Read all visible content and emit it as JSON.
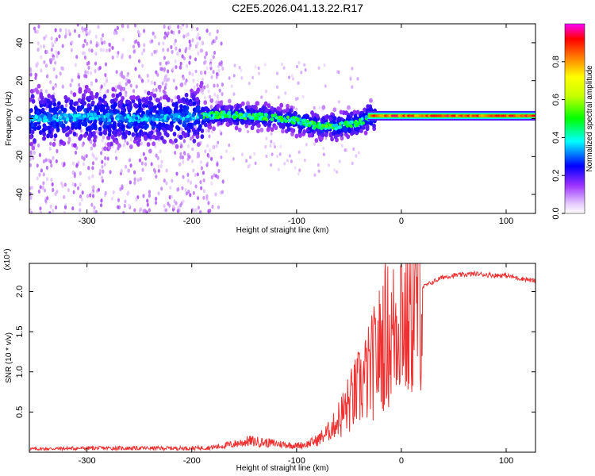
{
  "title": "C2E5.2026.041.13.22.R17",
  "chart_data": [
    {
      "type": "heatmap",
      "xlabel": "Height of straight line (km)",
      "ylabel": "Frequency (Hz)",
      "xlim": [
        -355,
        128
      ],
      "ylim": [
        -50,
        50
      ],
      "x_ticks": [
        -300,
        -200,
        -100,
        0,
        100
      ],
      "y_ticks": [
        -40,
        -20,
        0,
        20,
        40
      ],
      "colorbar": {
        "label": "Normalized spectral amplitude",
        "range": [
          0,
          1
        ],
        "ticks": [
          0.0,
          0.2,
          0.4,
          0.6,
          0.8
        ]
      },
      "ridge": [
        {
          "x": -350,
          "f": 0
        },
        {
          "x": -300,
          "f": 1
        },
        {
          "x": -250,
          "f": 0
        },
        {
          "x": -200,
          "f": 1
        },
        {
          "x": -170,
          "f": 2
        },
        {
          "x": -130,
          "f": 1
        },
        {
          "x": -100,
          "f": -1
        },
        {
          "x": -80,
          "f": -4
        },
        {
          "x": -60,
          "f": -4
        },
        {
          "x": -40,
          "f": -2
        },
        {
          "x": -30,
          "f": 1
        },
        {
          "x": -10,
          "f": 1
        },
        {
          "x": 0,
          "f": 1
        },
        {
          "x": 50,
          "f": 1
        },
        {
          "x": 100,
          "f": 2
        },
        {
          "x": 128,
          "f": 2
        }
      ]
    },
    {
      "type": "line",
      "xlabel": "Height of straight line (km)",
      "ylabel": "SNR (10 * v/v)",
      "y_multiplier": "(x10⁴)",
      "xlim": [
        -355,
        128
      ],
      "ylim": [
        0,
        2.35
      ],
      "x_ticks": [
        -300,
        -200,
        -100,
        0,
        100
      ],
      "y_ticks": [
        0.5,
        1.0,
        1.5,
        2.0
      ],
      "series": [
        {
          "color": "#ee3030",
          "x": [
            -355,
            -300,
            -250,
            -200,
            -180,
            -160,
            -145,
            -130,
            -115,
            -100,
            -90,
            -80,
            -70,
            -60,
            -50,
            -40,
            -30,
            -20,
            -15,
            -10,
            -5,
            0,
            5,
            10,
            15,
            20,
            30,
            40,
            50,
            60,
            70,
            80,
            90,
            100,
            110,
            120,
            128
          ],
          "values": [
            0.04,
            0.05,
            0.05,
            0.05,
            0.06,
            0.1,
            0.14,
            0.12,
            0.1,
            0.08,
            0.1,
            0.15,
            0.25,
            0.4,
            0.6,
            0.8,
            1.0,
            1.3,
            1.5,
            1.4,
            1.6,
            1.9,
            1.5,
            1.8,
            1.9,
            2.05,
            2.12,
            2.18,
            2.2,
            2.21,
            2.22,
            2.21,
            2.2,
            2.2,
            2.17,
            2.15,
            2.13
          ]
        }
      ]
    }
  ]
}
